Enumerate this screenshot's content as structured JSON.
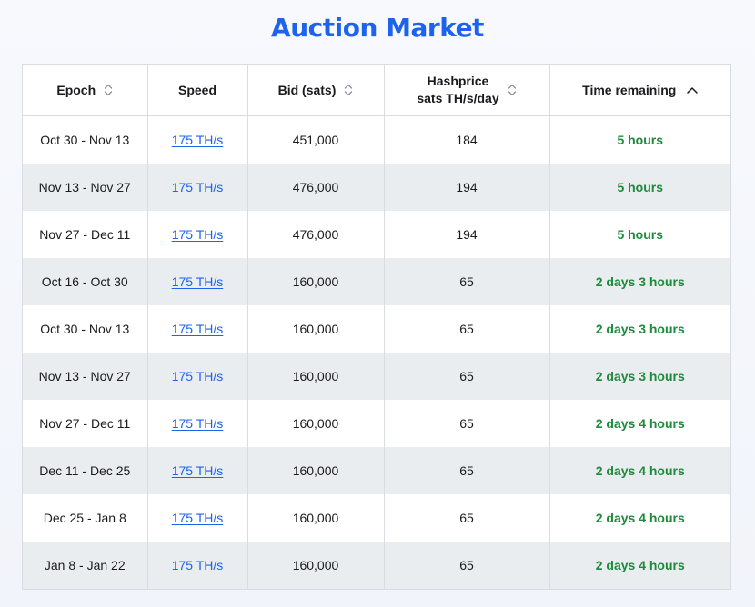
{
  "page": {
    "title": "Auction Market"
  },
  "table": {
    "headers": {
      "epoch": "Epoch",
      "speed": "Speed",
      "bid": "Bid (sats)",
      "hashprice_line1": "Hashprice",
      "hashprice_line2": "sats TH/s/day",
      "time_remaining": "Time remaining"
    },
    "sort_icons": {
      "epoch": "sort-unsorted-icon",
      "bid": "sort-unsorted-icon",
      "hashprice": "sort-unsorted-icon",
      "time_remaining": "sort-ascending-icon"
    },
    "rows": [
      {
        "epoch": "Oct 30 - Nov 13",
        "speed": "175 TH/s",
        "bid": "451,000",
        "hashprice": "184",
        "time_remaining": "5 hours"
      },
      {
        "epoch": "Nov 13 - Nov 27",
        "speed": "175 TH/s",
        "bid": "476,000",
        "hashprice": "194",
        "time_remaining": "5 hours"
      },
      {
        "epoch": "Nov 27 - Dec 11",
        "speed": "175 TH/s",
        "bid": "476,000",
        "hashprice": "194",
        "time_remaining": "5 hours"
      },
      {
        "epoch": "Oct 16 - Oct 30",
        "speed": "175 TH/s",
        "bid": "160,000",
        "hashprice": "65",
        "time_remaining": "2 days 3 hours"
      },
      {
        "epoch": "Oct 30 - Nov 13",
        "speed": "175 TH/s",
        "bid": "160,000",
        "hashprice": "65",
        "time_remaining": "2 days 3 hours"
      },
      {
        "epoch": "Nov 13 - Nov 27",
        "speed": "175 TH/s",
        "bid": "160,000",
        "hashprice": "65",
        "time_remaining": "2 days 3 hours"
      },
      {
        "epoch": "Nov 27 - Dec 11",
        "speed": "175 TH/s",
        "bid": "160,000",
        "hashprice": "65",
        "time_remaining": "2 days 4 hours"
      },
      {
        "epoch": "Dec 11 - Dec 25",
        "speed": "175 TH/s",
        "bid": "160,000",
        "hashprice": "65",
        "time_remaining": "2 days 4 hours"
      },
      {
        "epoch": "Dec 25 - Jan 8",
        "speed": "175 TH/s",
        "bid": "160,000",
        "hashprice": "65",
        "time_remaining": "2 days 4 hours"
      },
      {
        "epoch": "Jan 8 - Jan 22",
        "speed": "175 TH/s",
        "bid": "160,000",
        "hashprice": "65",
        "time_remaining": "2 days 4 hours"
      }
    ]
  },
  "colors": {
    "title": "#1d63ed",
    "link": "#1d63ed",
    "time_remaining": "#1e8a3c",
    "row_alt_bg": "#e9edf0",
    "border": "#d9dde3"
  }
}
